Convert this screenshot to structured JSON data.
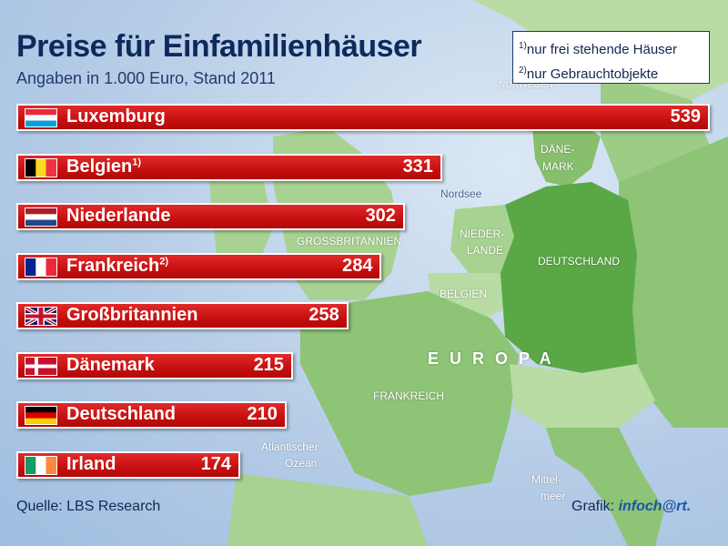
{
  "title": "Preise für Einfamilienhäuser",
  "subtitle": "Angaben in 1.000 Euro, Stand 2011",
  "notes": [
    {
      "mark": "1)",
      "text": "nur frei stehende Häuser"
    },
    {
      "mark": "2)",
      "text": "nur Gebrauchtobjekte"
    }
  ],
  "source": "Quelle: LBS Research",
  "credit": {
    "prefix": "Grafik:",
    "brand": "infoch@rt."
  },
  "map_labels": {
    "norwegen": "NORWEGEN",
    "daenemark_1": "DÄNE-",
    "daenemark_2": "MARK",
    "nordsee": "Nordsee",
    "grossbritannien": "GROSSBRITANNIEN",
    "niederlande_1": "NIEDER-",
    "niederlande_2": "LANDE",
    "deutschland": "DEUTSCHLAND",
    "belgien": "BELGIEN",
    "europa": "EUROPA",
    "frankreich": "FRANKREICH",
    "atlantik_1": "Atlantischer",
    "atlantik_2": "Ozean",
    "mittelmeer_1": "Mittel-",
    "mittelmeer_2": "meer"
  },
  "colors": {
    "bar": "#c8102e",
    "sea": "#b7cde7",
    "land": "#6aa84f",
    "title": "#0e2a5c"
  },
  "chart_data": {
    "type": "bar",
    "orientation": "horizontal",
    "title": "Preise für Einfamilienhäuser",
    "subtitle": "Angaben in 1.000 Euro, Stand 2011",
    "categories": [
      "Luxemburg",
      "Belgien",
      "Niederlande",
      "Frankreich",
      "Großbritannien",
      "Dänemark",
      "Deutschland",
      "Irland"
    ],
    "footnotes": [
      "",
      "1)",
      "",
      "2)",
      "",
      "",
      "",
      ""
    ],
    "flags": [
      "flag-luxembourg-icon",
      "flag-belgium-icon",
      "flag-netherlands-icon",
      "flag-france-icon",
      "flag-uk-icon",
      "flag-denmark-icon",
      "flag-germany-icon",
      "flag-ireland-icon"
    ],
    "values": [
      539,
      331,
      302,
      284,
      258,
      215,
      210,
      174
    ],
    "value_labels": [
      "539",
      "331",
      "302",
      "284",
      "258",
      "215",
      "210",
      "174"
    ],
    "xlim": [
      0,
      539
    ]
  }
}
